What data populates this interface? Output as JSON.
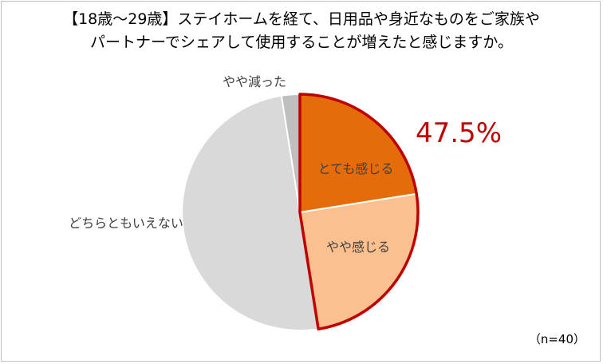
{
  "chart_data": {
    "type": "pie",
    "title_lines": [
      "【18歳～29歳】ステイホームを経て、日用品や身近なものをご家族や",
      "パートナーでシェアして使用することが増えたと感じますか。"
    ],
    "slices": [
      {
        "label": "とても感じる",
        "value": 22.5,
        "color": "#e46c0a"
      },
      {
        "label": "やや感じる",
        "value": 25.0,
        "color": "#fac090"
      },
      {
        "label": "どちらともいえない",
        "value": 50.0,
        "color": "#d9d9d9"
      },
      {
        "label": "やや減った",
        "value": 2.5,
        "color": "#bfbfbf"
      }
    ],
    "highlight_total": "47.5%",
    "highlight_color": "#c00000",
    "sample_size": "（n=40）",
    "legend": "none (labels on slices)"
  }
}
